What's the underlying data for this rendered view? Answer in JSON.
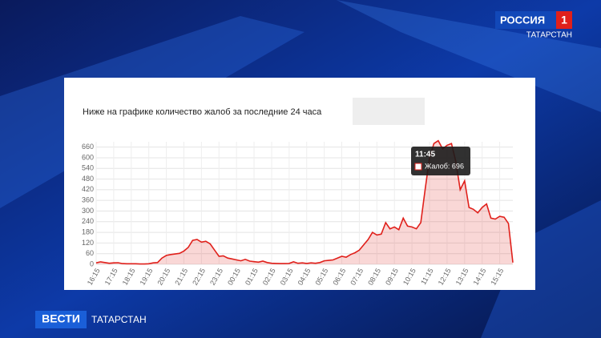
{
  "logo": {
    "channel": "РОССИЯ",
    "number": "1",
    "region": "ТАТАРСТАН"
  },
  "lower_third": {
    "brand": "ВЕСТИ",
    "region": "ТАТАРСТАН"
  },
  "chart_data": {
    "type": "area",
    "title": "Ниже на графике количество жалоб за последние 24 часа",
    "categories": [
      "16:15",
      null,
      null,
      null,
      "17:15",
      null,
      null,
      null,
      "18:15",
      null,
      null,
      null,
      "19:15",
      null,
      null,
      null,
      "20:15",
      null,
      null,
      null,
      "21:15",
      null,
      null,
      null,
      "22:15",
      null,
      null,
      null,
      "23:15",
      null,
      null,
      null,
      "00:15",
      null,
      null,
      null,
      "01:15",
      null,
      null,
      null,
      "02:15",
      null,
      null,
      null,
      "03:15",
      null,
      null,
      null,
      "04:15",
      null,
      null,
      null,
      "05:15",
      null,
      null,
      null,
      "06:15",
      null,
      null,
      null,
      "07:15",
      null,
      null,
      null,
      "08:15",
      null,
      null,
      null,
      "09:15",
      null,
      null,
      null,
      "10:15",
      null,
      null,
      null,
      "11:15",
      null,
      null,
      null,
      "12:15",
      null,
      null,
      null,
      "13:15",
      null,
      null,
      null,
      "14:15",
      null,
      null,
      null,
      "15:15",
      null,
      null,
      null
    ],
    "series": [
      {
        "name": "Жалоб",
        "color": "#e0201b",
        "fill": "rgba(224,32,27,0.18)",
        "values": [
          8,
          14,
          10,
          6,
          8,
          9,
          4,
          3,
          3,
          3,
          2,
          2,
          3,
          8,
          10,
          35,
          50,
          55,
          58,
          62,
          75,
          95,
          135,
          140,
          125,
          130,
          115,
          80,
          45,
          48,
          35,
          30,
          25,
          20,
          28,
          18,
          15,
          12,
          18,
          10,
          6,
          5,
          4,
          4,
          5,
          14,
          6,
          8,
          5,
          8,
          6,
          10,
          20,
          22,
          25,
          35,
          45,
          40,
          55,
          65,
          80,
          110,
          140,
          180,
          165,
          170,
          235,
          200,
          210,
          195,
          260,
          215,
          210,
          200,
          235,
          420,
          600,
          680,
          696,
          650,
          670,
          680,
          580,
          420,
          470,
          320,
          310,
          290,
          320,
          340,
          260,
          255,
          270,
          265,
          230,
          10
        ]
      }
    ],
    "ylim": [
      0,
      690
    ],
    "yticks": [
      0,
      60,
      120,
      180,
      240,
      300,
      360,
      420,
      480,
      540,
      600,
      660
    ],
    "grid": true,
    "tooltip": {
      "title": "11:45",
      "text": "Жалоб: 696"
    }
  }
}
